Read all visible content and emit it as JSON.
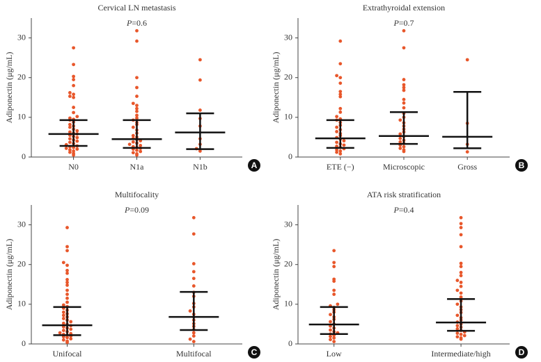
{
  "chart_data": [
    {
      "type": "dotplot",
      "title": "Cervical LN metastasis",
      "p_symbol": "P",
      "p_text": "=0.6",
      "panel_label": "A",
      "ylabel": "Adiponectin (μg/mL)",
      "ylim": [
        0,
        35
      ],
      "yticks": [
        0,
        10,
        20,
        30
      ],
      "color": "#e8572b",
      "categories": [
        "N0",
        "N1a",
        "N1b"
      ],
      "values": [
        [
          27.5,
          23.3,
          20.3,
          19.5,
          18,
          16.2,
          15.8,
          15.3,
          15,
          12.5,
          11.2,
          10.2,
          9.8,
          9.5,
          9.3,
          8.8,
          8.2,
          7.8,
          7.5,
          7.0,
          6.6,
          6.3,
          6.0,
          5.8,
          5.5,
          5.2,
          4.9,
          4.6,
          4.3,
          4.0,
          3.7,
          3.4,
          3.1,
          2.8,
          2.6,
          2.4,
          2.2,
          2.0,
          1.8,
          1.5,
          1.2,
          0.9,
          0.5
        ],
        [
          31.8,
          29.2,
          20,
          17.5,
          15.3,
          13.5,
          13,
          12.2,
          11.5,
          10.5,
          9.8,
          9.3,
          8.7,
          8.2,
          7.5,
          6.8,
          6.0,
          5.4,
          5.0,
          4.7,
          4.4,
          4.1,
          3.8,
          3.5,
          3.2,
          2.9,
          2.6,
          2.4,
          2.2,
          2.0,
          1.7,
          1.4,
          1.1,
          0.8,
          0.5
        ],
        [
          24.5,
          19.4,
          11.8,
          9.7,
          7.8,
          4.6,
          3.2,
          2.1,
          1.5
        ]
      ],
      "median": [
        5.8,
        4.5,
        6.2
      ],
      "q1": [
        2.8,
        2.3,
        2.0
      ],
      "q3": [
        9.3,
        9.3,
        11.0
      ]
    },
    {
      "type": "dotplot",
      "title": "Extrathyroidal extension",
      "p_symbol": "P",
      "p_text": "=0.7",
      "panel_label": "B",
      "ylabel": "Adiponectin (μg/mL)",
      "ylim": [
        0,
        35
      ],
      "yticks": [
        0,
        10,
        20,
        30
      ],
      "color": "#e8572b",
      "categories": [
        "ETE (−)",
        "Microscopic",
        "Gross"
      ],
      "values": [
        [
          29.2,
          23.5,
          20.5,
          20,
          18.6,
          16.5,
          15.8,
          15.2,
          12.2,
          11.3,
          10.2,
          9.6,
          9.3,
          8.7,
          8.0,
          7.5,
          6.9,
          6.4,
          5.9,
          5.4,
          4.9,
          4.5,
          4.1,
          3.7,
          3.3,
          3.0,
          2.7,
          2.4,
          2.1,
          1.8,
          1.5,
          1.2,
          0.8
        ],
        [
          31.8,
          27.5,
          19.5,
          18.2,
          17.5,
          16.8,
          14.5,
          13.6,
          12.4,
          11,
          10,
          9.3,
          8.6,
          7.8,
          7.0,
          6.3,
          5.8,
          5.2,
          4.7,
          4.2,
          3.8,
          3.4,
          3.0,
          2.6,
          2.2,
          1.8,
          1.4
        ],
        [
          24.5,
          8.5,
          3.2,
          1.3
        ]
      ],
      "median": [
        4.7,
        5.3,
        5.1
      ],
      "q1": [
        2.3,
        3.3,
        2.2
      ],
      "q3": [
        9.3,
        11.3,
        16.4
      ]
    },
    {
      "type": "dotplot",
      "title": "Multifocality",
      "p_symbol": "P",
      "p_text": "=0.09",
      "panel_label": "C",
      "ylabel": "Adiponectin (μg/mL)",
      "ylim": [
        0,
        35
      ],
      "yticks": [
        0,
        10,
        20,
        30
      ],
      "color": "#e8572b",
      "categories": [
        "Unifocal",
        "Multifocal"
      ],
      "values": [
        [
          29.3,
          24.5,
          23.5,
          20.5,
          19.8,
          18.5,
          17.8,
          16.2,
          15.5,
          14.8,
          13.5,
          12.5,
          11.5,
          10.5,
          9.8,
          9.4,
          9.0,
          8.5,
          8.0,
          7.6,
          7.2,
          6.8,
          6.4,
          6.0,
          5.6,
          5.2,
          4.9,
          4.6,
          4.3,
          4.0,
          3.7,
          3.4,
          3.1,
          2.8,
          2.6,
          2.4,
          2.2,
          2.0,
          1.8,
          1.6,
          1.3,
          1.0,
          0.7,
          0.4
        ],
        [
          31.8,
          27.7,
          20.2,
          18.2,
          16.5,
          14.6,
          13,
          12,
          10.2,
          9.3,
          8.3,
          7.5,
          6.8,
          6.0,
          5.1,
          4.4,
          3.6,
          2.8,
          2.0,
          1.2,
          0.6
        ]
      ],
      "median": [
        4.7,
        6.8
      ],
      "q1": [
        2.2,
        3.5
      ],
      "q3": [
        9.3,
        13.1
      ]
    },
    {
      "type": "dotplot",
      "title": "ATA risk stratification",
      "p_symbol": "P",
      "p_text": "=0.4",
      "panel_label": "D",
      "ylabel": "Adiponectin (μg/mL)",
      "ylim": [
        0,
        35
      ],
      "yticks": [
        0,
        10,
        20,
        30
      ],
      "color": "#e8572b",
      "categories": [
        "Low",
        "Intermediate/high"
      ],
      "values": [
        [
          23.5,
          20.5,
          19.5,
          16.3,
          15.8,
          13.5,
          12.5,
          10,
          9.6,
          9.2,
          8.6,
          8.0,
          7.4,
          6.8,
          6.2,
          5.6,
          5.0,
          4.5,
          4.0,
          3.5,
          3.1,
          2.8,
          2.5,
          2.2,
          1.9,
          1.5,
          1.1,
          0.6
        ],
        [
          31.8,
          30.3,
          29.3,
          27.5,
          24.5,
          20.3,
          19.5,
          18,
          17.2,
          16,
          15.5,
          14.5,
          13.5,
          12.8,
          11.8,
          10.8,
          10,
          9.3,
          8.6,
          7.9,
          7.2,
          6.6,
          6.0,
          5.5,
          5.0,
          4.6,
          4.2,
          3.8,
          3.4,
          3.0,
          2.7,
          2.4,
          2.1,
          1.8,
          1.5,
          1.2
        ]
      ],
      "median": [
        4.9,
        5.4
      ],
      "q1": [
        2.5,
        3.3
      ],
      "q3": [
        9.3,
        11.3
      ]
    }
  ]
}
